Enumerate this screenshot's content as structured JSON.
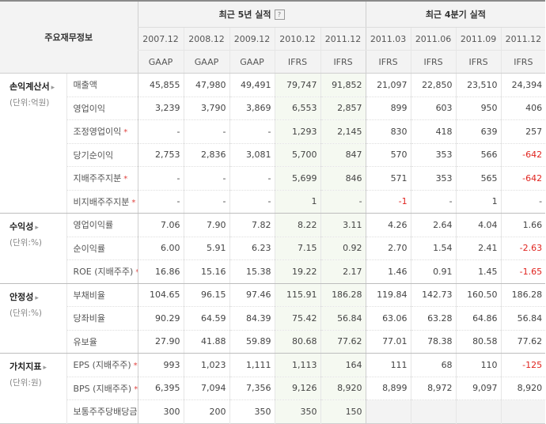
{
  "header": {
    "corner_label": "주요재무정보",
    "group_annual": "최근 5년 실적",
    "group_quarterly": "최근 4분기 실적",
    "help_icon": "?",
    "annual_periods": [
      "2007.12",
      "2008.12",
      "2009.12",
      "2010.12",
      "2011.12"
    ],
    "quarter_periods": [
      "2011.03",
      "2011.06",
      "2011.09",
      "2011.12"
    ],
    "annual_standards": [
      "GAAP",
      "GAAP",
      "GAAP",
      "IFRS",
      "IFRS"
    ],
    "quarter_standards": [
      "IFRS",
      "IFRS",
      "IFRS",
      "IFRS"
    ]
  },
  "colors": {
    "ifrs": "#e05a1a",
    "negative": "#e0241f",
    "star": "#e0433f",
    "highlight_bg": "#f5f9f1"
  },
  "categories": [
    {
      "name": "손익계산서",
      "unit": "(단위:억원)",
      "rows": [
        {
          "label": "매출액",
          "star": "",
          "values": [
            "45,855",
            "47,980",
            "49,491",
            "79,747",
            "91,852",
            "21,097",
            "22,850",
            "23,510",
            "24,394"
          ]
        },
        {
          "label": "영업이익",
          "star": "",
          "values": [
            "3,239",
            "3,790",
            "3,869",
            "6,553",
            "2,857",
            "899",
            "603",
            "950",
            "406"
          ]
        },
        {
          "label": "조정영업이익",
          "star": "*",
          "values": [
            "-",
            "-",
            "-",
            "1,293",
            "2,145",
            "830",
            "418",
            "639",
            "257"
          ]
        },
        {
          "label": "당기순이익",
          "star": "",
          "values": [
            "2,753",
            "2,836",
            "3,081",
            "5,700",
            "847",
            "570",
            "353",
            "566",
            "-642"
          ]
        },
        {
          "label": "지배주주지분",
          "star": "*",
          "values": [
            "-",
            "-",
            "-",
            "5,699",
            "846",
            "571",
            "353",
            "565",
            "-642"
          ]
        },
        {
          "label": "비지배주주지분",
          "star": "*",
          "values": [
            "-",
            "-",
            "-",
            "1",
            "-",
            "-1",
            "-",
            "1",
            "-"
          ]
        }
      ]
    },
    {
      "name": "수익성",
      "unit": "(단위:%)",
      "rows": [
        {
          "label": "영업이익률",
          "star": "",
          "values": [
            "7.06",
            "7.90",
            "7.82",
            "8.22",
            "3.11",
            "4.26",
            "2.64",
            "4.04",
            "1.66"
          ]
        },
        {
          "label": "순이익률",
          "star": "",
          "values": [
            "6.00",
            "5.91",
            "6.23",
            "7.15",
            "0.92",
            "2.70",
            "1.54",
            "2.41",
            "-2.63"
          ]
        },
        {
          "label": "ROE (지배주주)",
          "star": "*",
          "values": [
            "16.86",
            "15.16",
            "15.38",
            "19.22",
            "2.17",
            "1.46",
            "0.91",
            "1.45",
            "-1.65"
          ]
        }
      ]
    },
    {
      "name": "안정성",
      "unit": "(단위:%)",
      "rows": [
        {
          "label": "부채비율",
          "star": "",
          "values": [
            "104.65",
            "96.15",
            "97.46",
            "115.91",
            "186.28",
            "119.84",
            "142.73",
            "160.50",
            "186.28"
          ]
        },
        {
          "label": "당좌비율",
          "star": "",
          "values": [
            "90.29",
            "64.59",
            "84.39",
            "75.42",
            "56.84",
            "63.06",
            "63.28",
            "64.86",
            "56.84"
          ]
        },
        {
          "label": "유보율",
          "star": "",
          "values": [
            "27.90",
            "41.88",
            "59.89",
            "80.68",
            "77.62",
            "77.01",
            "78.38",
            "80.58",
            "77.62"
          ]
        }
      ]
    },
    {
      "name": "가치지표",
      "unit": "(단위:원)",
      "rows": [
        {
          "label": "EPS (지배주주)",
          "star": "*",
          "values": [
            "993",
            "1,023",
            "1,111",
            "1,113",
            "164",
            "111",
            "68",
            "110",
            "-125"
          ]
        },
        {
          "label": "BPS (지배주주)",
          "star": "*",
          "values": [
            "6,395",
            "7,094",
            "7,356",
            "9,126",
            "8,920",
            "8,899",
            "8,972",
            "9,097",
            "8,920"
          ]
        },
        {
          "label": "보통주주당배당금",
          "star": "",
          "values": [
            "300",
            "200",
            "350",
            "350",
            "150",
            "",
            "",
            "",
            ""
          ]
        }
      ]
    }
  ]
}
